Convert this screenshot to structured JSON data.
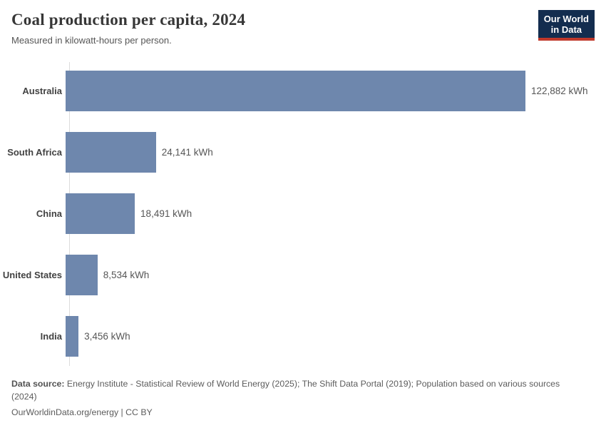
{
  "header": {
    "title": "Coal production per capita, 2024",
    "subtitle": "Measured in kilowatt-hours per person.",
    "logo": {
      "line1": "Our World",
      "line2": "in Data"
    }
  },
  "chart_data": {
    "type": "bar",
    "orientation": "horizontal",
    "title": "Coal production per capita, 2024",
    "xlabel": "",
    "ylabel": "",
    "unit": "kWh",
    "categories": [
      "Australia",
      "South Africa",
      "China",
      "United States",
      "India"
    ],
    "values": [
      122882,
      24141,
      18491,
      8534,
      3456
    ],
    "value_labels": [
      "122,882 kWh",
      "24,141 kWh",
      "18,491 kWh",
      "8,534 kWh",
      "3,456 kWh"
    ],
    "xlim": [
      0,
      122882
    ],
    "grid": false,
    "legend": false,
    "bar_color": "#6e87ad"
  },
  "footer": {
    "datasource_label": "Data source:",
    "datasource_text": " Energy Institute - Statistical Review of World Energy (2025); The Shift Data Portal (2019); Population based on various sources (2024)",
    "link_line": "OurWorldinData.org/energy | CC BY"
  },
  "colors": {
    "bar": "#6e87ad",
    "logo_navy": "#132d4f",
    "logo_red": "#c0392b",
    "axis_line": "#dcdcdc",
    "title_text": "#373737",
    "body_text": "#555555"
  }
}
